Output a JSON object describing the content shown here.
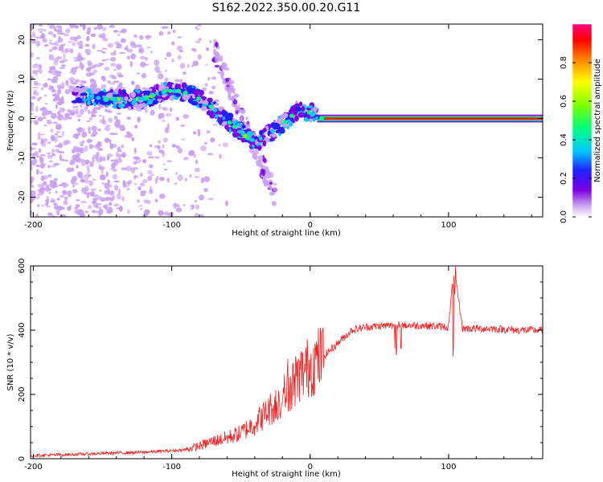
{
  "title": "S162.2022.350.00.20.G11",
  "chart_data": [
    {
      "type": "heatmap",
      "xlabel": "Height of straight line (km)",
      "ylabel": "Frequency (Hz)",
      "xlim": [
        -202,
        168
      ],
      "ylim": [
        -25,
        24
      ],
      "x_ticks": [
        -200,
        -100,
        0,
        100
      ],
      "y_ticks": [
        -20,
        -10,
        0,
        10,
        20
      ],
      "colorbar": {
        "label": "Normalized spectral amplitude",
        "range": [
          0,
          1
        ],
        "ticks": [
          "0.0",
          "0.2",
          "0.4",
          "0.6",
          "0.8"
        ],
        "colormap": [
          "#ffffff",
          "#c9a0f0",
          "#7a00e0",
          "#2020ff",
          "#00c8ff",
          "#00ff80",
          "#80ff00",
          "#ffff00",
          "#ff8000",
          "#ff0000",
          "#ff0080"
        ]
      },
      "ridge": {
        "x": [
          -165,
          -150,
          -135,
          -120,
          -105,
          -95,
          -85,
          -75,
          -65,
          -55,
          -45,
          -38,
          -30,
          -22,
          -15,
          -10,
          -5,
          0,
          5,
          10,
          20,
          40,
          60,
          80,
          100,
          120,
          140,
          168
        ],
        "y": [
          6,
          5,
          5,
          5,
          7,
          7,
          6,
          4,
          1,
          -2,
          -5,
          -6,
          -4,
          -2,
          0,
          2,
          2,
          1.5,
          1,
          0.5,
          0,
          0,
          0,
          0,
          0,
          0,
          0,
          0
        ]
      }
    },
    {
      "type": "line",
      "xlabel": "Height of straight line (km)",
      "ylabel": "SNR (10 * v/v)",
      "xlim": [
        -202,
        168
      ],
      "ylim": [
        0,
        600
      ],
      "x_ticks": [
        -200,
        -100,
        0,
        100
      ],
      "y_ticks": [
        0,
        200,
        400,
        600
      ],
      "color": "#ee2222",
      "envelope": {
        "x": [
          -202,
          -180,
          -160,
          -140,
          -120,
          -100,
          -90,
          -80,
          -70,
          -60,
          -50,
          -40,
          -30,
          -20,
          -10,
          0,
          10,
          20,
          30,
          40,
          60,
          80,
          100,
          104,
          110,
          130,
          150,
          168
        ],
        "y": [
          10,
          12,
          15,
          18,
          20,
          25,
          28,
          40,
          55,
          65,
          80,
          110,
          150,
          190,
          250,
          290,
          320,
          360,
          400,
          410,
          415,
          415,
          410,
          600,
          405,
          405,
          400,
          400
        ]
      }
    }
  ]
}
